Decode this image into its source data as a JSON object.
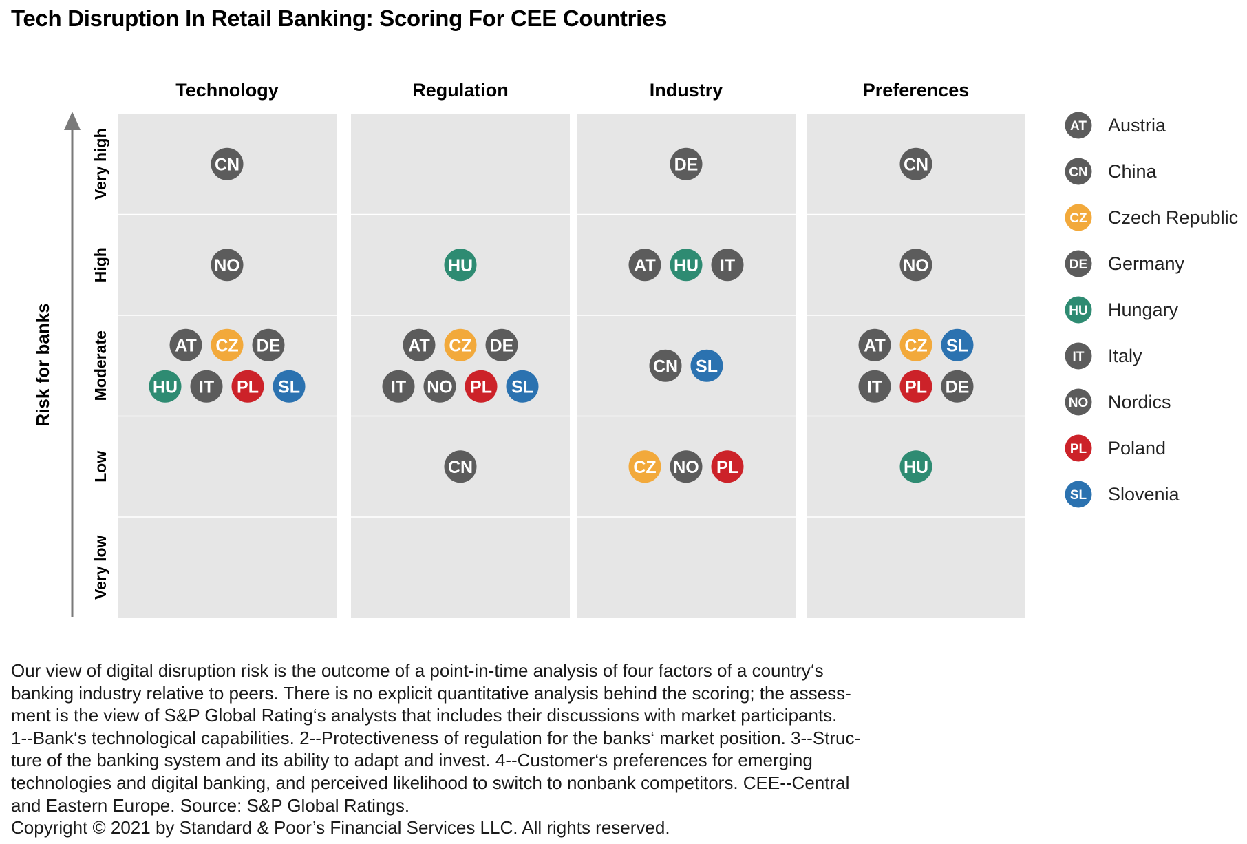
{
  "title": "Tech Disruption In Retail Banking: Scoring For CEE Countries",
  "chart_data": {
    "type": "categorical-grid",
    "title": "Tech Disruption In Retail Banking: Scoring For CEE Countries",
    "ylabel": "Risk for banks",
    "columns": [
      "Technology",
      "Regulation",
      "Industry",
      "Preferences"
    ],
    "rows": [
      "Very high",
      "High",
      "Moderate",
      "Low",
      "Very low"
    ],
    "countries": [
      {
        "code": "AT",
        "name": "Austria",
        "color": "#5c5c5c"
      },
      {
        "code": "CN",
        "name": "China",
        "color": "#5c5c5c"
      },
      {
        "code": "CZ",
        "name": "Czech Republic",
        "color": "#f2a93b"
      },
      {
        "code": "DE",
        "name": "Germany",
        "color": "#5c5c5c"
      },
      {
        "code": "HU",
        "name": "Hungary",
        "color": "#2e8b72"
      },
      {
        "code": "IT",
        "name": "Italy",
        "color": "#5c5c5c"
      },
      {
        "code": "NO",
        "name": "Nordics",
        "color": "#5c5c5c"
      },
      {
        "code": "PL",
        "name": "Poland",
        "color": "#cc2229"
      },
      {
        "code": "SL",
        "name": "Slovenia",
        "color": "#2b72b0"
      }
    ],
    "cells": [
      [
        [
          [
            "CN"
          ]
        ],
        [
          [
            "NO"
          ]
        ],
        [
          [
            "AT",
            "CZ",
            "DE"
          ],
          [
            "HU",
            "IT",
            "PL",
            "SL"
          ]
        ],
        [],
        []
      ],
      [
        [],
        [
          [
            "HU"
          ]
        ],
        [
          [
            "AT",
            "CZ",
            "DE"
          ],
          [
            "IT",
            "NO",
            "PL",
            "SL"
          ]
        ],
        [
          [
            "CN"
          ]
        ],
        []
      ],
      [
        [
          [
            "DE"
          ]
        ],
        [
          [
            "AT",
            "HU",
            "IT"
          ]
        ],
        [
          [
            "CN",
            "SL"
          ]
        ],
        [
          [
            "CZ",
            "NO",
            "PL"
          ]
        ],
        []
      ],
      [
        [
          [
            "CN"
          ]
        ],
        [
          [
            "NO"
          ]
        ],
        [
          [
            "AT",
            "CZ",
            "SL"
          ],
          [
            "IT",
            "PL",
            "DE"
          ]
        ],
        [
          [
            "HU"
          ]
        ],
        []
      ]
    ]
  },
  "notes": [
    "Our view of digital disruption risk is the outcome of a point-in-time analysis of four factors of a country‘s",
    "banking industry relative to peers. There is no explicit quantitative analysis behind the scoring; the assess-",
    "ment is the view of S&P Global Rating‘s analysts that includes their discussions with market participants.",
    "1--Bank‘s technological capabilities. 2--Protectiveness of regulation for the banks‘ market position. 3--Struc-",
    "ture of the banking system and its ability to adapt and invest. 4--Customer‘s preferences for emerging",
    "technologies and digital banking, and perceived likelihood to switch to nonbank competitors. CEE--Central",
    "and Eastern Europe. Source: S&P Global Ratings.",
    "Copyright © 2021 by Standard & Poor’s Financial Services LLC. All rights reserved."
  ]
}
